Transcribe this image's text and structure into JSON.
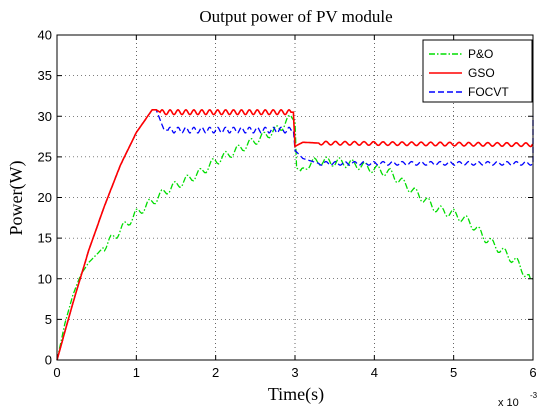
{
  "chart_data": {
    "type": "line",
    "title": "Output power of PV module",
    "xlabel": "Time(s)",
    "ylabel": "Power(W)",
    "x_exponent_label": "x 10",
    "x_exponent_power": "-3",
    "xlim": [
      0,
      6
    ],
    "ylim": [
      0,
      40
    ],
    "x_ticks": [
      "0",
      "1",
      "2",
      "3",
      "4",
      "5",
      "6"
    ],
    "y_ticks": [
      "0",
      "5",
      "10",
      "15",
      "20",
      "25",
      "30",
      "35",
      "40"
    ],
    "grid": true,
    "legend_position": "top-right",
    "series": [
      {
        "name": "P&O",
        "color": "#00dd00",
        "style": "dash-dot",
        "points": [
          [
            0,
            0
          ],
          [
            0.1,
            4.5
          ],
          [
            0.2,
            8
          ],
          [
            0.3,
            10.5
          ],
          [
            0.4,
            12
          ],
          [
            0.5,
            13
          ],
          [
            0.6,
            14
          ],
          [
            0.7,
            15
          ],
          [
            0.8,
            16
          ],
          [
            0.9,
            17
          ],
          [
            1.0,
            18
          ],
          [
            1.1,
            18.8
          ],
          [
            1.2,
            19.5
          ],
          [
            1.4,
            21
          ],
          [
            1.6,
            22
          ],
          [
            1.8,
            23
          ],
          [
            2.0,
            24.5
          ],
          [
            2.2,
            25.5
          ],
          [
            2.4,
            26.5
          ],
          [
            2.6,
            27.5
          ],
          [
            2.8,
            28.5
          ],
          [
            2.95,
            29.8
          ],
          [
            3.0,
            30
          ],
          [
            3.02,
            24
          ],
          [
            3.07,
            22.8
          ],
          [
            3.15,
            24
          ],
          [
            3.3,
            24.5
          ],
          [
            3.6,
            24.3
          ],
          [
            3.8,
            24
          ],
          [
            4.0,
            23.5
          ],
          [
            4.2,
            23
          ],
          [
            4.4,
            21.5
          ],
          [
            4.6,
            20
          ],
          [
            4.8,
            18.5
          ],
          [
            5.0,
            18
          ],
          [
            5.2,
            17
          ],
          [
            5.4,
            15
          ],
          [
            5.6,
            13.5
          ],
          [
            5.8,
            12
          ],
          [
            5.95,
            10
          ],
          [
            6.0,
            10
          ]
        ]
      },
      {
        "name": "GSO",
        "color": "#ff0000",
        "style": "solid",
        "points": [
          [
            0,
            0
          ],
          [
            0.2,
            7
          ],
          [
            0.4,
            13.5
          ],
          [
            0.6,
            19
          ],
          [
            0.8,
            24
          ],
          [
            1.0,
            28
          ],
          [
            1.2,
            30.8
          ],
          [
            1.25,
            30.8
          ],
          [
            1.3,
            30.5
          ],
          [
            2.98,
            30.5
          ],
          [
            3.0,
            26.3
          ],
          [
            3.1,
            26.8
          ],
          [
            3.3,
            26.7
          ],
          [
            6.0,
            26.5
          ]
        ]
      },
      {
        "name": "FOCVT",
        "color": "#0000ff",
        "style": "dashed",
        "points": [
          [
            0,
            0
          ],
          [
            0.2,
            7
          ],
          [
            0.4,
            13.5
          ],
          [
            0.6,
            19
          ],
          [
            0.8,
            24
          ],
          [
            1.0,
            28
          ],
          [
            1.2,
            30.8
          ],
          [
            1.25,
            30.8
          ],
          [
            1.35,
            28.3
          ],
          [
            2.98,
            28.3
          ],
          [
            3.0,
            25.8
          ],
          [
            3.1,
            24.8
          ],
          [
            3.3,
            24.2
          ],
          [
            6.0,
            24.2
          ],
          [
            6.0,
            30
          ]
        ]
      }
    ]
  }
}
